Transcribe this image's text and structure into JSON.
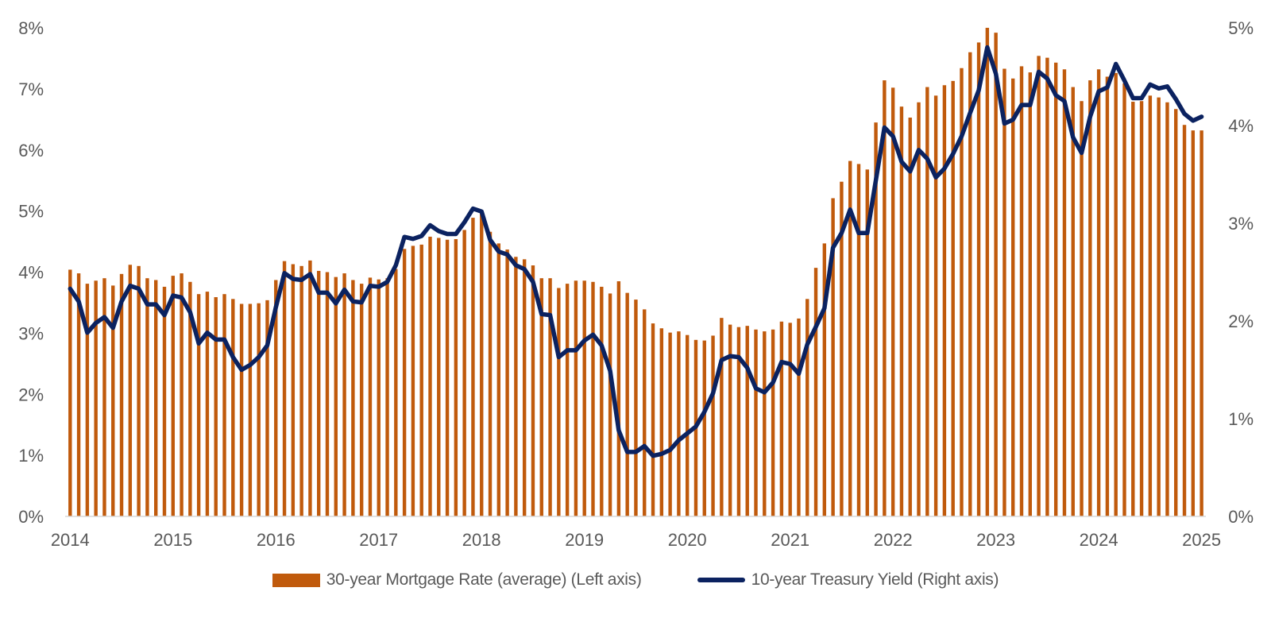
{
  "chart_data": {
    "type": "bar+line",
    "title": "",
    "x_ticks": [
      "2014",
      "2015",
      "2016",
      "2017",
      "2018",
      "2019",
      "2020",
      "2021",
      "2022",
      "2023",
      "2024",
      "2025"
    ],
    "x_frequency": "monthly",
    "left_axis": {
      "ticks": [
        "0%",
        "1%",
        "2%",
        "3%",
        "4%",
        "5%",
        "6%",
        "7%",
        "8%"
      ],
      "ylim": [
        0,
        8
      ]
    },
    "right_axis": {
      "ticks": [
        "0%",
        "1%",
        "2%",
        "3%",
        "4%",
        "5%"
      ],
      "ylim": [
        0,
        5
      ]
    },
    "grid": false,
    "legend_position": "bottom",
    "series": [
      {
        "name": "30-year Mortgage Rate (average) (Left axis)",
        "type": "bar",
        "axis": "left",
        "color": "#C05A0C",
        "values": [
          4.04,
          3.98,
          3.81,
          3.86,
          3.9,
          3.78,
          3.97,
          4.12,
          4.1,
          3.9,
          3.87,
          3.76,
          3.94,
          3.98,
          3.84,
          3.64,
          3.68,
          3.59,
          3.64,
          3.56,
          3.48,
          3.48,
          3.49,
          3.54,
          3.87,
          4.18,
          4.13,
          4.1,
          4.19,
          4.02,
          4.0,
          3.92,
          3.98,
          3.87,
          3.81,
          3.91,
          3.88,
          3.9,
          4.05,
          4.38,
          4.43,
          4.45,
          4.58,
          4.56,
          4.53,
          4.54,
          4.69,
          4.89,
          4.98,
          4.66,
          4.47,
          4.37,
          4.25,
          4.21,
          4.11,
          3.9,
          3.9,
          3.74,
          3.81,
          3.86,
          3.86,
          3.84,
          3.76,
          3.65,
          3.85,
          3.66,
          3.55,
          3.39,
          3.16,
          3.08,
          3.01,
          3.03,
          2.97,
          2.89,
          2.88,
          2.96,
          3.25,
          3.14,
          3.1,
          3.12,
          3.06,
          3.03,
          3.06,
          3.19,
          3.17,
          3.24,
          3.56,
          4.07,
          4.47,
          5.21,
          5.48,
          5.82,
          5.77,
          5.68,
          6.45,
          7.14,
          7.02,
          6.71,
          6.53,
          6.78,
          7.03,
          6.89,
          7.06,
          7.13,
          7.34,
          7.6,
          7.76,
          8.0,
          7.92,
          7.33,
          7.17,
          7.37,
          7.27,
          7.54,
          7.51,
          7.43,
          7.32,
          7.03,
          6.8,
          7.14,
          7.32,
          7.2,
          7.26,
          7.09,
          6.79,
          6.8,
          6.89,
          6.86,
          6.78,
          6.67,
          6.41,
          6.32,
          6.32
        ]
      },
      {
        "name": "10-year Treasury Yield (Right axis)",
        "type": "line",
        "axis": "right",
        "color": "#0B2260",
        "values": [
          2.33,
          2.2,
          1.88,
          1.98,
          2.04,
          1.93,
          2.2,
          2.36,
          2.33,
          2.17,
          2.17,
          2.06,
          2.26,
          2.24,
          2.09,
          1.77,
          1.88,
          1.81,
          1.81,
          1.63,
          1.5,
          1.55,
          1.63,
          1.75,
          2.14,
          2.49,
          2.43,
          2.42,
          2.48,
          2.29,
          2.29,
          2.18,
          2.32,
          2.2,
          2.19,
          2.36,
          2.35,
          2.4,
          2.57,
          2.86,
          2.84,
          2.87,
          2.98,
          2.92,
          2.89,
          2.89,
          3.01,
          3.15,
          3.12,
          2.83,
          2.71,
          2.68,
          2.57,
          2.53,
          2.4,
          2.07,
          2.06,
          1.63,
          1.7,
          1.7,
          1.8,
          1.86,
          1.75,
          1.49,
          0.88,
          0.66,
          0.66,
          0.72,
          0.62,
          0.64,
          0.68,
          0.78,
          0.85,
          0.92,
          1.07,
          1.26,
          1.6,
          1.64,
          1.63,
          1.52,
          1.31,
          1.27,
          1.37,
          1.58,
          1.56,
          1.46,
          1.76,
          1.94,
          2.13,
          2.75,
          2.9,
          3.14,
          2.9,
          2.9,
          3.44,
          3.98,
          3.89,
          3.63,
          3.53,
          3.75,
          3.66,
          3.47,
          3.56,
          3.71,
          3.89,
          4.13,
          4.36,
          4.8,
          4.53,
          4.02,
          4.06,
          4.21,
          4.21,
          4.55,
          4.48,
          4.31,
          4.25,
          3.88,
          3.72,
          4.09,
          4.35,
          4.39,
          4.63,
          4.46,
          4.28,
          4.28,
          4.42,
          4.38,
          4.4,
          4.27,
          4.12,
          4.05,
          4.09
        ]
      }
    ]
  }
}
